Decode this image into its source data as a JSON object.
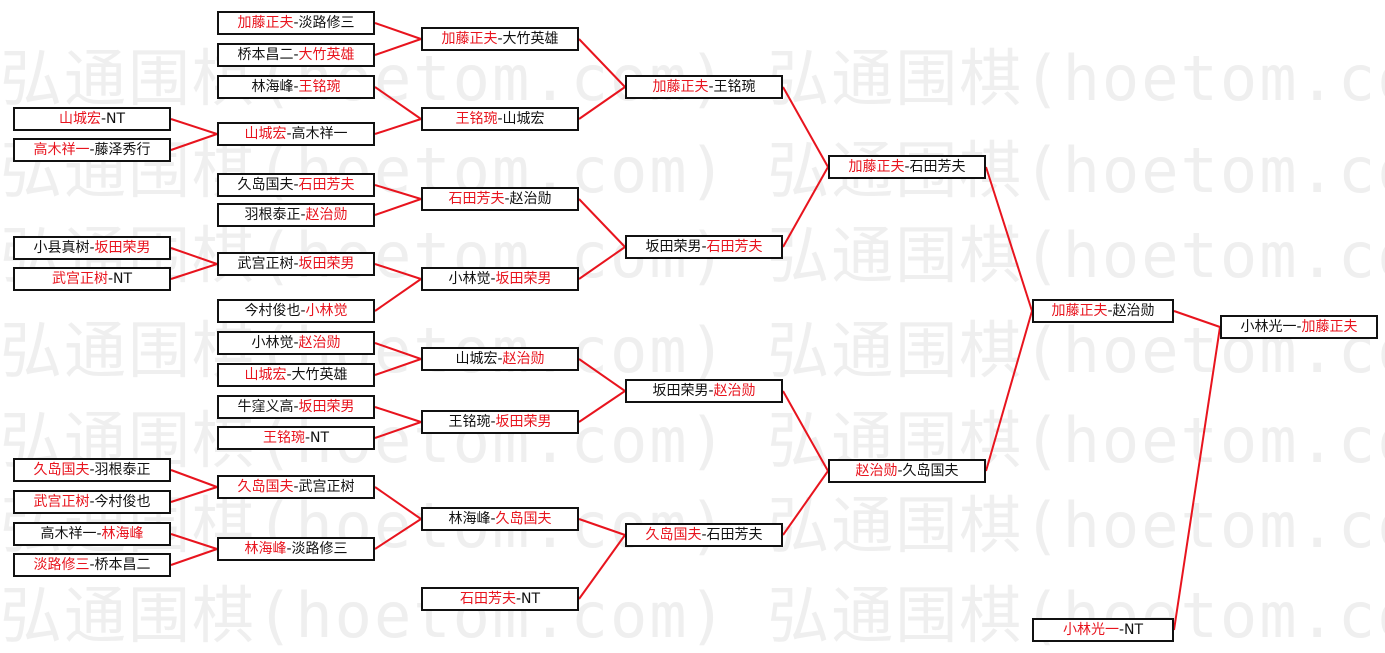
{
  "watermark": "弘通围棋(hoetom.com) 弘通围棋(hoetom.com) 弘",
  "colors": {
    "winner": "#e8141e",
    "connector": "#e8141e",
    "border": "#111111"
  },
  "separator": "-",
  "rounds": [
    [
      {
        "left": "山城宏",
        "right": "NT",
        "winner": "left"
      },
      {
        "left": "高木祥一",
        "right": "藤泽秀行",
        "winner": "left"
      },
      {
        "left": "小县真树",
        "right": "坂田荣男",
        "winner": "right"
      },
      {
        "left": "武宫正树",
        "right": "NT",
        "winner": "left"
      },
      {
        "left": "久岛国夫",
        "right": "羽根泰正",
        "winner": "left"
      },
      {
        "left": "武宫正树",
        "right": "今村俊也",
        "winner": "left"
      },
      {
        "left": "高木祥一",
        "right": "林海峰",
        "winner": "right"
      },
      {
        "left": "淡路修三",
        "right": "桥本昌二",
        "winner": "left"
      }
    ],
    [
      {
        "left": "加藤正夫",
        "right": "淡路修三",
        "winner": "left"
      },
      {
        "left": "桥本昌二",
        "right": "大竹英雄",
        "winner": "right"
      },
      {
        "left": "林海峰",
        "right": "王铭琬",
        "winner": "right"
      },
      {
        "left": "山城宏",
        "right": "高木祥一",
        "winner": "left"
      },
      {
        "left": "久岛国夫",
        "right": "石田芳夫",
        "winner": "right"
      },
      {
        "left": "羽根泰正",
        "right": "赵治勋",
        "winner": "right"
      },
      {
        "left": "武宫正树",
        "right": "坂田荣男",
        "winner": "right"
      },
      {
        "left": "今村俊也",
        "right": "小林觉",
        "winner": "right"
      },
      {
        "left": "小林觉",
        "right": "赵治勋",
        "winner": "right"
      },
      {
        "left": "山城宏",
        "right": "大竹英雄",
        "winner": "left"
      },
      {
        "left": "牛窪义高",
        "right": "坂田荣男",
        "winner": "right"
      },
      {
        "left": "王铭琬",
        "right": "NT",
        "winner": "left"
      },
      {
        "left": "久岛国夫",
        "right": "武宫正树",
        "winner": "left"
      },
      {
        "left": "林海峰",
        "right": "淡路修三",
        "winner": "left"
      }
    ],
    [
      {
        "left": "加藤正夫",
        "right": "大竹英雄",
        "winner": "left"
      },
      {
        "left": "王铭琬",
        "right": "山城宏",
        "winner": "left"
      },
      {
        "left": "石田芳夫",
        "right": "赵治勋",
        "winner": "left"
      },
      {
        "left": "小林觉",
        "right": "坂田荣男",
        "winner": "right"
      },
      {
        "left": "山城宏",
        "right": "赵治勋",
        "winner": "right"
      },
      {
        "left": "王铭琬",
        "right": "坂田荣男",
        "winner": "right"
      },
      {
        "left": "林海峰",
        "right": "久岛国夫",
        "winner": "right"
      },
      {
        "left": "石田芳夫",
        "right": "NT",
        "winner": "left"
      }
    ],
    [
      {
        "left": "加藤正夫",
        "right": "王铭琬",
        "winner": "left"
      },
      {
        "left": "坂田荣男",
        "right": "石田芳夫",
        "winner": "right"
      },
      {
        "left": "坂田荣男",
        "right": "赵治勋",
        "winner": "right"
      },
      {
        "left": "久岛国夫",
        "right": "石田芳夫",
        "winner": "left"
      }
    ],
    [
      {
        "left": "加藤正夫",
        "right": "石田芳夫",
        "winner": "left"
      },
      {
        "left": "赵治勋",
        "right": "久岛国夫",
        "winner": "left"
      }
    ],
    [
      {
        "left": "加藤正夫",
        "right": "赵治勋",
        "winner": "left"
      },
      {
        "left": "小林光一",
        "right": "NT",
        "winner": "left"
      }
    ],
    [
      {
        "left": "小林光一",
        "right": "加藤正夫",
        "winner": "right"
      }
    ]
  ]
}
